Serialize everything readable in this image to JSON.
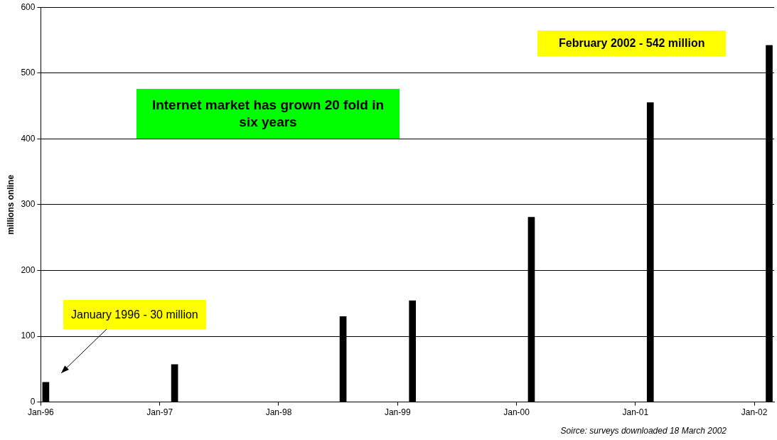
{
  "chart_data": {
    "type": "bar",
    "x": [
      "1996-01",
      "1997-02",
      "1998-07",
      "1999-02",
      "2000-02",
      "2001-02",
      "2002-02"
    ],
    "values": [
      30,
      57,
      130,
      154,
      281,
      455,
      542
    ],
    "color": "#000000",
    "ylabel": "millions online",
    "ylim": [
      0,
      600
    ],
    "yticks": [
      0,
      100,
      200,
      300,
      400,
      500,
      600
    ],
    "xlim": [
      "1996-01",
      "2002-03"
    ],
    "xticks": [
      {
        "value": "1996-01",
        "label": "Jan-96"
      },
      {
        "value": "1997-01",
        "label": "Jan-97"
      },
      {
        "value": "1998-01",
        "label": "Jan-98"
      },
      {
        "value": "1999-01",
        "label": "Jan-99"
      },
      {
        "value": "2000-01",
        "label": "Jan-00"
      },
      {
        "value": "2001-01",
        "label": "Jan-01"
      },
      {
        "value": "2002-01",
        "label": "Jan-02"
      }
    ],
    "grid": "y",
    "annotations": [
      "Internet market has grown 20 fold in six years",
      "January 1996 - 30 million",
      "February 2002 - 542 million",
      "Soirce: surveys downloaded 18 March 2002"
    ]
  }
}
